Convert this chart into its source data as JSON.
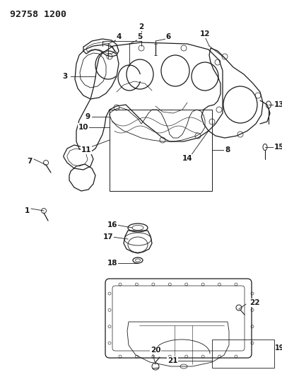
{
  "title": "92758 1200",
  "bg_color": "#ffffff",
  "line_color": "#1a1a1a",
  "title_fontsize": 9.5,
  "label_fontsize": 7.5,
  "figsize": [
    3.99,
    5.33
  ],
  "dpi": 100
}
